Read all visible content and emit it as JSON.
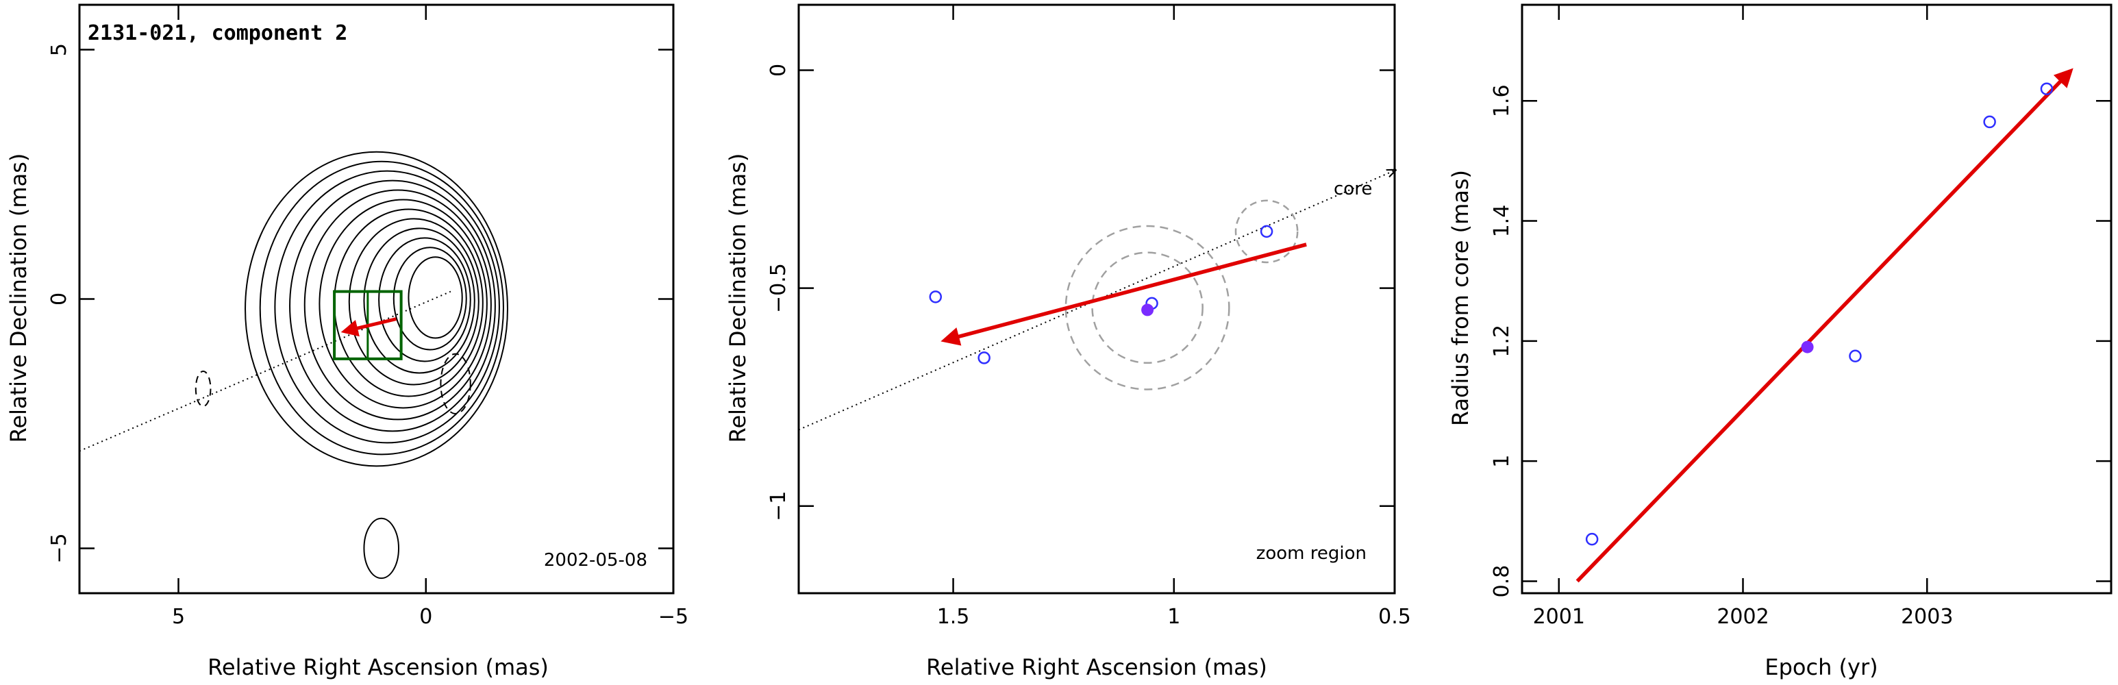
{
  "chart_data": [
    {
      "type": "contour",
      "title": "2131-021, component 2",
      "annotation": "2002-05-08",
      "xlabel": "Relative Right Ascension (mas)",
      "ylabel": "Relative Declination (mas)",
      "xlim": [
        7,
        -5
      ],
      "ylim": [
        -5.9,
        5.9
      ],
      "xticks": [
        5,
        0,
        -5
      ],
      "xtick_labels": [
        "5",
        "0",
        "−5"
      ],
      "yticks": [
        5,
        0,
        -5
      ],
      "ytick_labels": [
        "5",
        "0",
        "−5"
      ],
      "peak": {
        "x": -0.3,
        "y": 0.05
      },
      "contour_levels": 12,
      "negative_contours": [
        {
          "x": 4.5,
          "y": -1.8,
          "rx": 0.15,
          "ry": 0.35
        },
        {
          "x": -0.6,
          "y": -1.7,
          "rx": 0.3,
          "ry": 0.6
        }
      ],
      "side_lobe": {
        "x": 0.9,
        "y": -5.0,
        "rx": 0.35,
        "ry": 0.6
      },
      "core_line": [
        [
          7,
          -3.05
        ],
        [
          -0.5,
          0.15
        ]
      ],
      "zoom_box": {
        "x_range": [
          1.85,
          0.5
        ],
        "y_range": [
          -1.2,
          0.15
        ]
      },
      "motion_arrow": {
        "from": [
          0.6,
          -0.4
        ],
        "to": [
          1.65,
          -0.65
        ]
      }
    },
    {
      "type": "scatter",
      "title": "",
      "annotation": "zoom region",
      "core_label": "core",
      "xlabel": "Relative Right Ascension (mas)",
      "ylabel": "Relative Declination (mas)",
      "xlim": [
        1.85,
        0.5
      ],
      "ylim": [
        -1.2,
        0.15
      ],
      "xticks": [
        1.5,
        1,
        0.5
      ],
      "xtick_labels": [
        "1.5",
        "1",
        "0.5"
      ],
      "yticks": [
        0,
        -0.5,
        -1
      ],
      "ytick_labels": [
        "0",
        "−0.5",
        "−1"
      ],
      "points": [
        {
          "x": 1.54,
          "y": -0.52
        },
        {
          "x": 1.43,
          "y": -0.66
        },
        {
          "x": 1.05,
          "y": -0.535
        },
        {
          "x": 0.79,
          "y": -0.37
        }
      ],
      "highlight": {
        "x": 1.06,
        "y": -0.55
      },
      "core_line": [
        [
          1.85,
          -0.825
        ],
        [
          0.5,
          -0.23
        ]
      ],
      "motion_arrow": {
        "from": [
          0.7,
          -0.4
        ],
        "to": [
          1.52,
          -0.62
        ]
      },
      "beam_circles": [
        {
          "x": 1.06,
          "y": -0.545,
          "r": 0.185
        },
        {
          "x": 1.06,
          "y": -0.545,
          "r": 0.125
        }
      ],
      "beam_small": {
        "x": 0.79,
        "y": -0.37,
        "r": 0.07
      }
    },
    {
      "type": "scatter",
      "title": "",
      "xlabel": "Epoch (yr)",
      "ylabel": "Radius from core (mas)",
      "xlim": [
        2000.8,
        2004.0
      ],
      "ylim": [
        0.78,
        1.76
      ],
      "xticks": [
        2001,
        2002,
        2003
      ],
      "xtick_labels": [
        "2001",
        "2002",
        "2003"
      ],
      "yticks": [
        0.8,
        1,
        1.2,
        1.4,
        1.6
      ],
      "ytick_labels": [
        "0.8",
        "1",
        "1.2",
        "1.4",
        "1.6"
      ],
      "points": [
        {
          "x": 2001.18,
          "y": 0.87
        },
        {
          "x": 2002.61,
          "y": 1.175
        },
        {
          "x": 2003.34,
          "y": 1.565
        },
        {
          "x": 2003.65,
          "y": 1.62
        }
      ],
      "highlight": {
        "x": 2002.35,
        "y": 1.19
      },
      "fit_arrow": {
        "from": [
          2001.1,
          0.8
        ],
        "to": [
          2003.78,
          1.65
        ]
      }
    }
  ],
  "colors": {
    "axes": "#000000",
    "contour": "#000000",
    "open_point": "#2f2fff",
    "highlight_point": "#7a2cff",
    "arrow": "#e00000",
    "zoom_box": "#006400",
    "beam_circle": "#a0a0a0"
  }
}
